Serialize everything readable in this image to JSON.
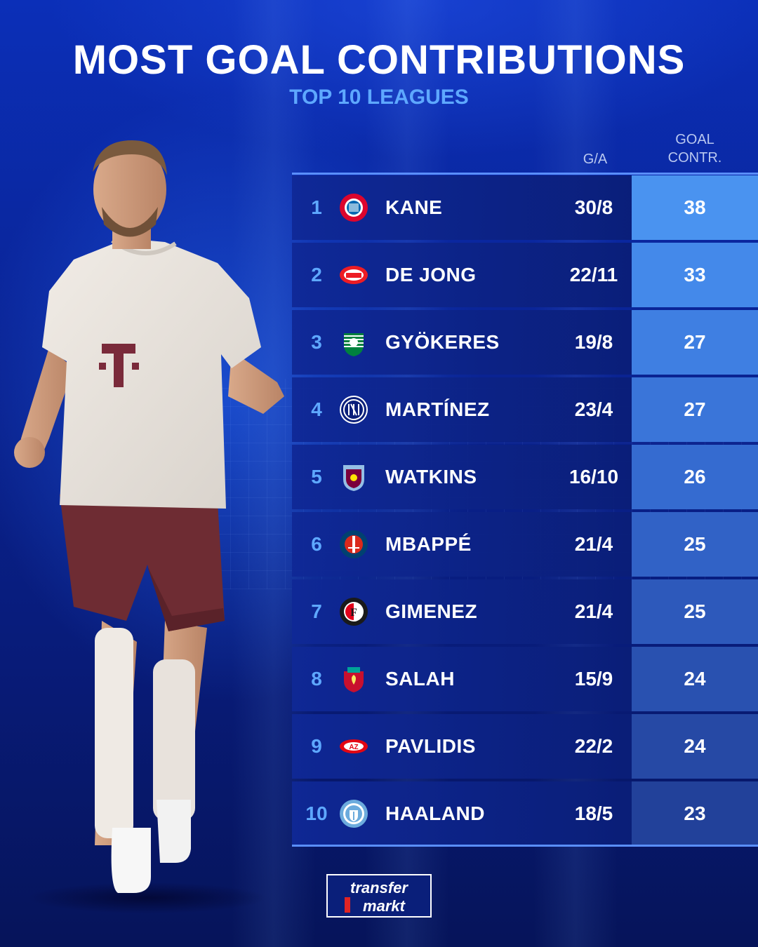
{
  "header": {
    "title": "MOST GOAL CONTRIBUTIONS",
    "subtitle": "TOP 10 LEAGUES"
  },
  "columns": {
    "ga": "G/A",
    "gc_line1": "GOAL",
    "gc_line2": "CONTR."
  },
  "rows": [
    {
      "rank": "1",
      "name": "KANE",
      "ga": "30/8",
      "gc": "38",
      "crest": "bayern-munich-crest-icon",
      "gc_color": "#4a93f0"
    },
    {
      "rank": "2",
      "name": "DE JONG",
      "ga": "22/11",
      "gc": "33",
      "crest": "psv-crest-icon",
      "gc_color": "#4489ea"
    },
    {
      "rank": "3",
      "name": "GYÖKERES",
      "ga": "19/8",
      "gc": "27",
      "crest": "sporting-cp-crest-icon",
      "gc_color": "#3f7fe2"
    },
    {
      "rank": "4",
      "name": "MARTÍNEZ",
      "ga": "23/4",
      "gc": "27",
      "crest": "inter-crest-icon",
      "gc_color": "#3a75d9"
    },
    {
      "rank": "5",
      "name": "WATKINS",
      "ga": "16/10",
      "gc": "26",
      "crest": "aston-villa-crest-icon",
      "gc_color": "#356bd0"
    },
    {
      "rank": "6",
      "name": "MBAPPÉ",
      "ga": "21/4",
      "gc": "25",
      "crest": "psg-crest-icon",
      "gc_color": "#3162c6"
    },
    {
      "rank": "7",
      "name": "GIMENEZ",
      "ga": "21/4",
      "gc": "25",
      "crest": "feyenoord-crest-icon",
      "gc_color": "#2d59bb"
    },
    {
      "rank": "8",
      "name": "SALAH",
      "ga": "15/9",
      "gc": "24",
      "crest": "liverpool-crest-icon",
      "gc_color": "#2951b0"
    },
    {
      "rank": "9",
      "name": "PAVLIDIS",
      "ga": "22/2",
      "gc": "24",
      "crest": "az-alkmaar-crest-icon",
      "gc_color": "#2649a5"
    },
    {
      "rank": "10",
      "name": "HAALAND",
      "ga": "18/5",
      "gc": "23",
      "crest": "manchester-city-crest-icon",
      "gc_color": "#22419a"
    }
  ],
  "brand": {
    "logo_line1": "transfer",
    "logo_line2": "markt"
  }
}
